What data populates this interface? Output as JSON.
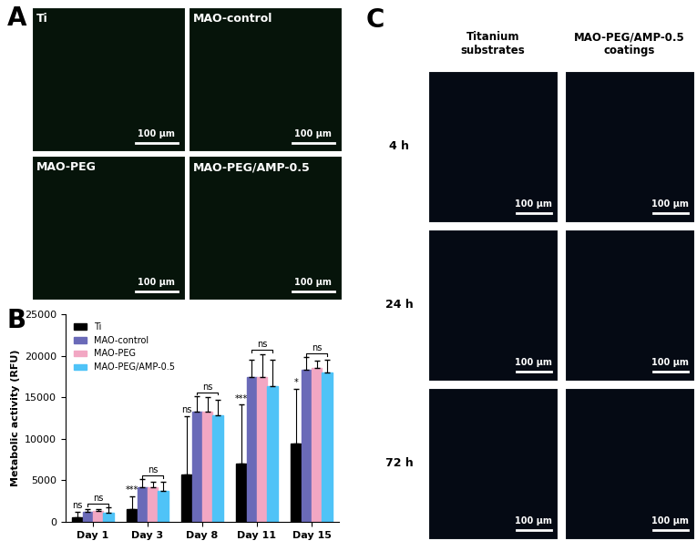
{
  "panel_labels": [
    "A",
    "B",
    "C"
  ],
  "panel_A": {
    "images": [
      "Ti",
      "MAO-control",
      "MAO-PEG",
      "MAO-PEG/AMP-0.5"
    ],
    "scale_bar": "100 µm"
  },
  "panel_C": {
    "columns": [
      "Titanium\nsubstrates",
      "MAO-PEG/AMP-0.5\ncoatings"
    ],
    "rows": [
      "4 h",
      "24 h",
      "72 h"
    ],
    "scale_bar": "100 µm"
  },
  "chart_data": {
    "type": "bar",
    "y_label": "Metabolic activity (RFU)",
    "categories": [
      "Day 1",
      "Day 3",
      "Day 8",
      "Day 11",
      "Day 15"
    ],
    "series": [
      {
        "name": "Ti",
        "color": "#000000",
        "values": [
          500,
          1500,
          5700,
          7000,
          9400
        ],
        "errors": [
          700,
          1600,
          7000,
          7100,
          6600
        ]
      },
      {
        "name": "MAO-control",
        "color": "#6A6AB8",
        "values": [
          1200,
          4200,
          13300,
          17400,
          18300
        ],
        "errors": [
          300,
          900,
          1800,
          2100,
          1500
        ]
      },
      {
        "name": "MAO-PEG",
        "color": "#F2A7C3",
        "values": [
          1300,
          4200,
          13300,
          17400,
          18500
        ],
        "errors": [
          200,
          600,
          1700,
          2800,
          900
        ]
      },
      {
        "name": "MAO-PEG/AMP-0.5",
        "color": "#4FC3F7",
        "values": [
          1100,
          3700,
          12800,
          16300,
          18000
        ],
        "errors": [
          600,
          1100,
          1900,
          3200,
          1500
        ]
      }
    ],
    "comparisons": [
      {
        "category": "Day 1",
        "series": [
          "Ti"
        ],
        "label": "ns"
      },
      {
        "category": "Day 1",
        "series": [
          "MAO-control",
          "MAO-PEG",
          "MAO-PEG/AMP-0.5"
        ],
        "label": "ns"
      },
      {
        "category": "Day 3",
        "series": [
          "Ti"
        ],
        "label": "***"
      },
      {
        "category": "Day 3",
        "series": [
          "MAO-control",
          "MAO-PEG",
          "MAO-PEG/AMP-0.5"
        ],
        "label": "ns"
      },
      {
        "category": "Day 8",
        "series": [
          "Ti"
        ],
        "label": "ns"
      },
      {
        "category": "Day 8",
        "series": [
          "MAO-control",
          "MAO-PEG",
          "MAO-PEG/AMP-0.5"
        ],
        "label": "ns"
      },
      {
        "category": "Day 11",
        "series": [
          "Ti"
        ],
        "label": "***"
      },
      {
        "category": "Day 11",
        "series": [
          "MAO-control",
          "MAO-PEG",
          "MAO-PEG/AMP-0.5"
        ],
        "label": "ns"
      },
      {
        "category": "Day 15",
        "series": [
          "Ti"
        ],
        "label": "*"
      },
      {
        "category": "Day 15",
        "series": [
          "MAO-control",
          "MAO-PEG",
          "MAO-PEG/AMP-0.5"
        ],
        "label": "ns"
      }
    ],
    "ylim": [
      0,
      25000
    ],
    "yticks": [
      0,
      5000,
      10000,
      15000,
      20000,
      25000
    ],
    "grid": false,
    "legend": "upper left"
  }
}
